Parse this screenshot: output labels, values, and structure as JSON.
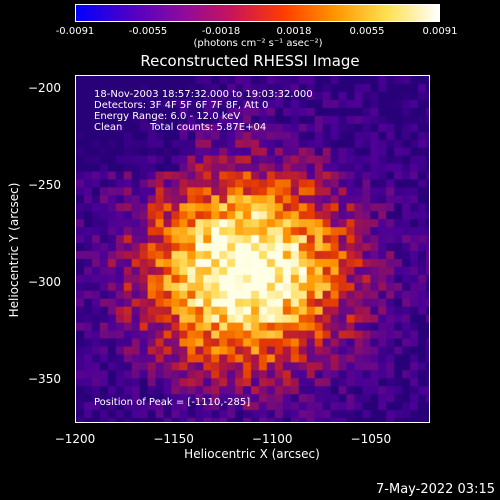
{
  "title": "Reconstructed RHESSI Image",
  "colorbar": {
    "ticks": [
      "-0.0091",
      "-0.0055",
      "-0.0018",
      "0.0018",
      "0.0055",
      "0.0091"
    ],
    "units": "(photons cm⁻² s⁻¹ asec⁻²)",
    "range": [
      -0.0091,
      0.0091
    ],
    "colors": [
      "#0000ff",
      "#4b00c8",
      "#8a0aa0",
      "#c8145a",
      "#ff3c00",
      "#ff9600",
      "#ffe050",
      "#ffffff"
    ]
  },
  "info": {
    "time_range": "18-Nov-2003 18:57:32.000 to 19:03:32.000",
    "detectors": "Detectors: 3F 4F 5F 6F 7F 8F, Att 0",
    "energy": "Energy Range: 6.0 - 12.0 keV",
    "algorithm": "Clean",
    "counts": "Total counts: 5.87E+04",
    "peak": "Position of Peak = [-1110,-285]"
  },
  "axes": {
    "xlabel": "Heliocentric X (arcsec)",
    "ylabel": "Heliocentric Y (arcsec)",
    "xticks": [
      "-1200",
      "-1150",
      "-1100",
      "-1050"
    ],
    "yticks": [
      "-200",
      "-250",
      "-300",
      "-350"
    ],
    "xlim": [
      -1200,
      -1020
    ],
    "ylim": [
      -372,
      -193
    ]
  },
  "chart_data": {
    "type": "heatmap",
    "title": "Reconstructed RHESSI Image",
    "xlabel": "Heliocentric X (arcsec)",
    "ylabel": "Heliocentric Y (arcsec)",
    "xlim": [
      -1200,
      -1020
    ],
    "ylim": [
      -372,
      -193
    ],
    "zlim": [
      -0.0091,
      0.0091
    ],
    "peak": [
      -1110,
      -285
    ]
  },
  "timestamp": "7-May-2022 03:15"
}
